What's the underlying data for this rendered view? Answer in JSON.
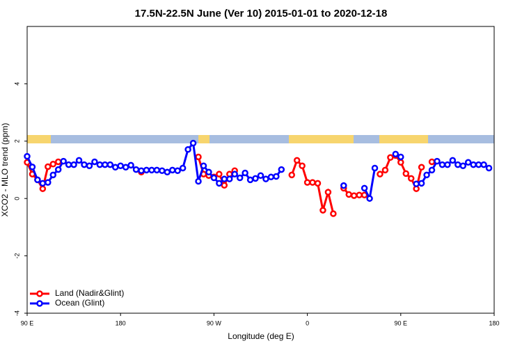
{
  "chart_data": {
    "type": "line",
    "title": "17.5N-22.5N June (Ver 10)   2015-01-01 to 2020-12-18",
    "x_label": "Longitude (deg E)",
    "y_label": "XCO2 - MLO trend (ppm)",
    "x": [
      90,
      95,
      100,
      105,
      110,
      115,
      120,
      125,
      130,
      135,
      140,
      145,
      150,
      155,
      160,
      165,
      170,
      175,
      180,
      185,
      190,
      195,
      200,
      205,
      210,
      215,
      220,
      225,
      230,
      235,
      240,
      245,
      250,
      255,
      260,
      265,
      270,
      275,
      280,
      285,
      290,
      295,
      300,
      305,
      310,
      315,
      320,
      325,
      330,
      335,
      340,
      345,
      350,
      355,
      360,
      365,
      370,
      375,
      380,
      385,
      390,
      395,
      400,
      405,
      410,
      415,
      420,
      425,
      430,
      435,
      440,
      445,
      450,
      455,
      460,
      465,
      470,
      475,
      480,
      485,
      490,
      495,
      500,
      505,
      510,
      515,
      520,
      525,
      530,
      535,
      540
    ],
    "series": [
      {
        "name": "Land (Nadir&Glint)",
        "color": "#ff0000",
        "values": [
          1.26,
          0.85,
          0.65,
          0.34,
          1.11,
          1.2,
          1.28,
          null,
          null,
          null,
          null,
          null,
          null,
          null,
          null,
          null,
          null,
          null,
          null,
          null,
          null,
          null,
          0.92,
          null,
          null,
          null,
          null,
          null,
          null,
          null,
          null,
          null,
          null,
          1.45,
          0.85,
          0.8,
          0.75,
          0.85,
          0.46,
          0.85,
          0.97,
          null,
          null,
          null,
          null,
          null,
          null,
          null,
          null,
          null,
          null,
          0.82,
          1.33,
          1.14,
          0.56,
          0.56,
          0.53,
          -0.41,
          0.22,
          -0.53,
          null,
          0.36,
          0.14,
          0.1,
          0.12,
          0.12,
          null,
          null,
          0.85,
          0.99,
          1.43,
          1.5,
          1.26,
          0.87,
          0.7,
          0.34,
          1.09,
          null,
          1.28,
          null,
          null,
          null,
          null,
          null,
          null,
          null,
          null,
          null,
          null,
          null,
          null
        ]
      },
      {
        "name": "Ocean (Glint)",
        "color": "#0000ff",
        "values": [
          1.47,
          1.1,
          0.65,
          0.53,
          0.56,
          0.82,
          1.01,
          1.3,
          1.18,
          1.18,
          1.33,
          1.18,
          1.14,
          1.28,
          1.18,
          1.18,
          1.18,
          1.09,
          1.14,
          1.09,
          1.16,
          1.01,
          0.97,
          0.99,
          0.99,
          0.99,
          0.97,
          0.92,
          0.99,
          0.97,
          1.06,
          1.71,
          1.93,
          0.6,
          1.14,
          0.92,
          0.72,
          0.53,
          0.68,
          0.68,
          0.85,
          0.72,
          0.89,
          0.65,
          0.7,
          0.8,
          0.68,
          0.75,
          0.77,
          1.01,
          null,
          null,
          null,
          null,
          null,
          null,
          null,
          null,
          null,
          null,
          null,
          0.45,
          null,
          null,
          null,
          0.36,
          0.0,
          1.06,
          null,
          null,
          null,
          1.55,
          1.45,
          null,
          null,
          0.51,
          0.53,
          0.82,
          0.99,
          1.3,
          1.18,
          1.18,
          1.33,
          1.18,
          1.14,
          1.26,
          1.18,
          1.18,
          1.18,
          1.06,
          null
        ]
      }
    ],
    "xlim": [
      90,
      540
    ],
    "xticks": [
      {
        "value": 90,
        "label": "90 E"
      },
      180,
      {
        "value": 270,
        "label": "90 W"
      },
      {
        "value": 360,
        "label": "0"
      },
      {
        "value": 450,
        "label": "90 E"
      },
      {
        "value": 540,
        "label": "180"
      }
    ],
    "ylim": [
      -4,
      6
    ],
    "yticks": [
      -4,
      -2,
      0,
      2,
      4
    ],
    "legend": "bottom-left"
  }
}
